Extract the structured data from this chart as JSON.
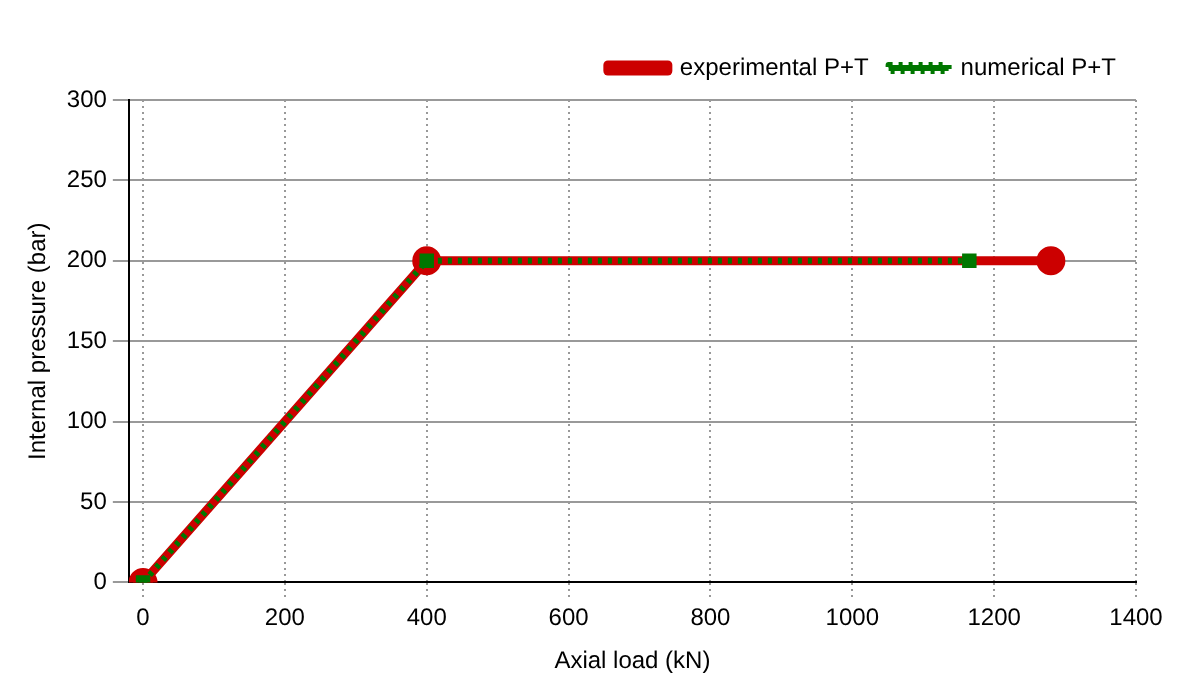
{
  "chart_data": {
    "type": "line",
    "xlabel": "Axial load (kN)",
    "ylabel": "Internal pressure (bar)",
    "xlim": [
      -20,
      1400
    ],
    "xticks": [
      0,
      200,
      400,
      600,
      800,
      1000,
      1200,
      1400
    ],
    "ylim": [
      0,
      300
    ],
    "yticks": [
      0,
      50,
      100,
      150,
      200,
      250,
      300
    ],
    "grid": true,
    "legend": "top right",
    "series": [
      {
        "name": "experimental P+T",
        "color": "#cc0000",
        "x": [
          0,
          400,
          1280
        ],
        "values": [
          0,
          200,
          200
        ],
        "marker": "circle",
        "line_style": "solid"
      },
      {
        "name": "numerical P+T",
        "color": "#007700",
        "x": [
          0,
          400,
          1165
        ],
        "values": [
          0,
          200,
          200
        ],
        "marker": "square",
        "line_style": "dotted"
      }
    ]
  }
}
